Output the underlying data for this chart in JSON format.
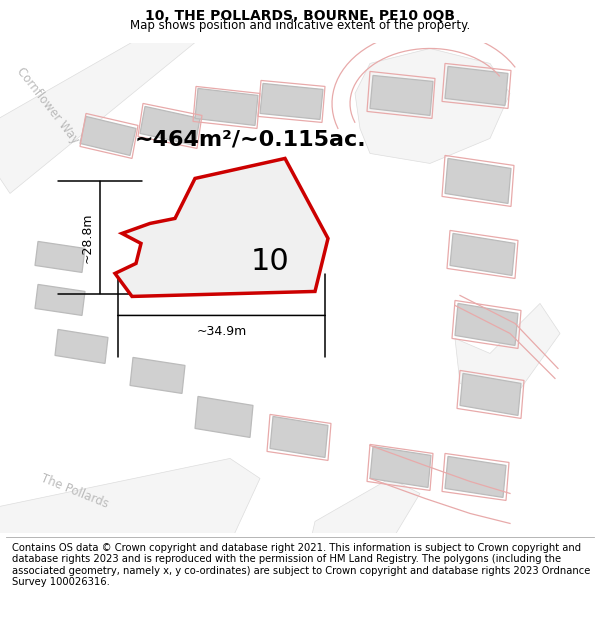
{
  "title": "10, THE POLLARDS, BOURNE, PE10 0QB",
  "subtitle": "Map shows position and indicative extent of the property.",
  "footer": "Contains OS data © Crown copyright and database right 2021. This information is subject to Crown copyright and database rights 2023 and is reproduced with the permission of HM Land Registry. The polygons (including the associated geometry, namely x, y co-ordinates) are subject to Crown copyright and database rights 2023 Ordnance Survey 100026316.",
  "area_label": "~464m²/~0.115ac.",
  "number_label": "10",
  "dim_v": "~28.8m",
  "dim_h": "~34.9m",
  "map_bg": "#e8e8e8",
  "road_color": "#f5f5f5",
  "building_fill": "#d0d0d0",
  "building_edge": "#bbbbbb",
  "plot_stroke": "#cc0000",
  "plot_fill": "#f0f0f0",
  "pink": "#e8aaaa",
  "street_color": "#bbbbbb",
  "street_label1": "Cornflower Way",
  "street_label2": "The Pollards",
  "title_fontsize": 10,
  "subtitle_fontsize": 8.5,
  "footer_fontsize": 7.2,
  "area_fontsize": 16,
  "number_fontsize": 22,
  "dim_fontsize": 9,
  "street_fontsize": 8.5
}
